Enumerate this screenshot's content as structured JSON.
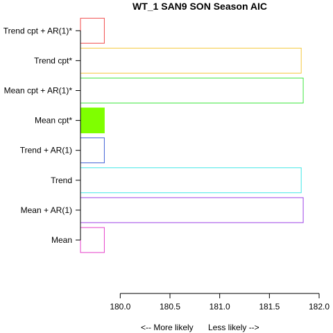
{
  "chart_data": {
    "type": "bar",
    "orientation": "horizontal",
    "title": "WT_1 SAN9 SON Season AIC",
    "xlabel_left": "<--  More likely",
    "xlabel_right": "Less likely  -->",
    "xlim": [
      179.6,
      182.0
    ],
    "x_ticks": [
      180.0,
      180.5,
      181.0,
      181.5,
      182.0
    ],
    "x_tick_labels": [
      "180.0",
      "180.5",
      "181.0",
      "181.5",
      "182.0"
    ],
    "categories": [
      "Mean",
      "Mean + AR(1)",
      "Trend",
      "Trend + AR(1)",
      "Mean cpt*",
      "Mean cpt + AR(1)*",
      "Trend cpt*",
      "Trend cpt + AR(1)*"
    ],
    "values": [
      179.84,
      181.84,
      181.82,
      179.84,
      179.84,
      181.84,
      181.82,
      179.84
    ],
    "colors": [
      "#e63fc9",
      "#9b3fe6",
      "#3fe6e6",
      "#3f5fd6",
      "#7fff00",
      "#3fe63f",
      "#f5c83f",
      "#f04a4a"
    ],
    "filled": [
      false,
      false,
      false,
      false,
      true,
      false,
      false,
      false
    ],
    "grid": false,
    "legend": "none"
  }
}
